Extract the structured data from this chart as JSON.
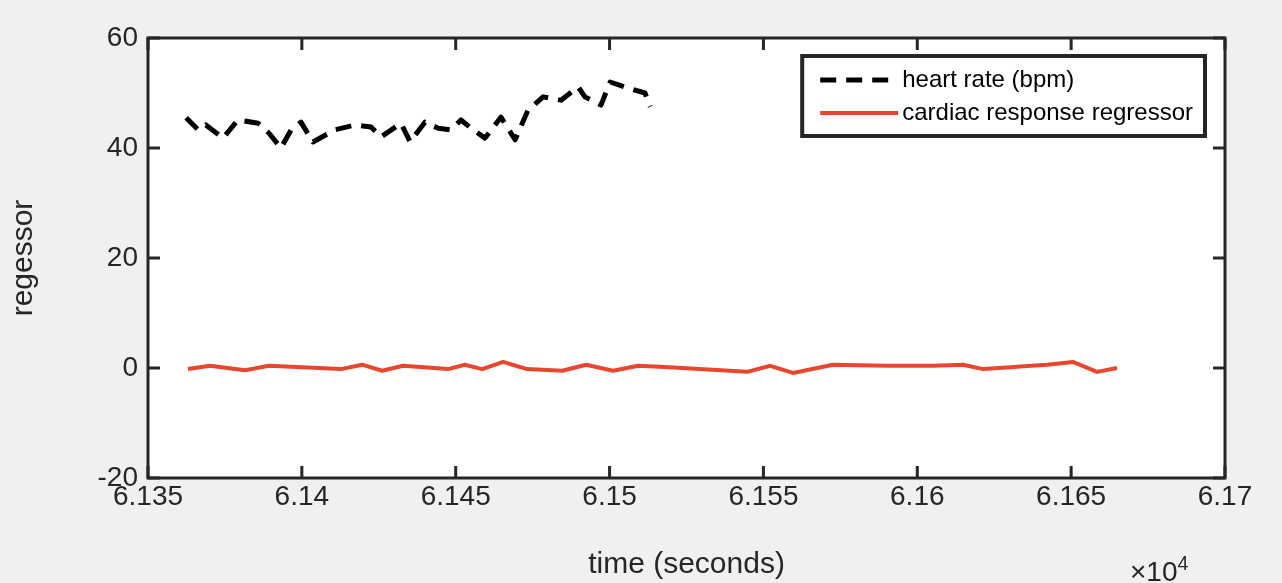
{
  "chart_data": {
    "type": "line",
    "xlabel": "time (seconds)",
    "ylabel": "regessor",
    "xlim": [
      6.135,
      6.17
    ],
    "xticks": [
      6.135,
      6.14,
      6.145,
      6.15,
      6.155,
      6.16,
      6.165,
      6.17
    ],
    "ylim": [
      -20,
      60
    ],
    "yticks": [
      -20,
      0,
      20,
      40,
      60
    ],
    "legend": "top right",
    "annotations": [
      "×10$^{4}$"
    ],
    "series": [
      {
        "name": "heart rate (bpm)",
        "color": "#000000",
        "line_style": "dashed",
        "x": [
          6.13624,
          6.13663,
          6.13688,
          6.13744,
          6.13792,
          6.13858,
          6.1389,
          6.13932,
          6.13965,
          6.13997,
          6.14036,
          6.14108,
          6.14173,
          6.14225,
          6.14257,
          6.14322,
          6.14352,
          6.144,
          6.14443,
          6.14485,
          6.14517,
          6.1455,
          6.14595,
          6.14647,
          6.14693,
          6.14735,
          6.14784,
          6.14842,
          6.14898,
          6.1492,
          6.14972,
          6.15002,
          6.1506,
          6.15115,
          6.15132
        ],
        "values": [
          45.5,
          43.3,
          44.2,
          41.8,
          45.1,
          44.5,
          42.9,
          40.0,
          43.3,
          44.7,
          41.1,
          43.3,
          44.2,
          43.8,
          42.0,
          44.5,
          41.1,
          44.7,
          43.6,
          43.3,
          45.1,
          43.6,
          41.8,
          45.6,
          41.5,
          46.9,
          49.3,
          48.7,
          51.1,
          49.3,
          47.8,
          52.0,
          50.9,
          50.0,
          47.5
        ]
      },
      {
        "name": "cardiac response regressor",
        "color": "#e8472e",
        "line_style": "solid",
        "x": [
          6.1363,
          6.13702,
          6.13815,
          6.13893,
          6.14127,
          6.14196,
          6.14261,
          6.14329,
          6.14475,
          6.1453,
          6.14586,
          6.14654,
          6.14732,
          6.14846,
          6.14924,
          6.15011,
          6.15093,
          6.1518,
          6.15447,
          6.15522,
          6.15596,
          6.15726,
          6.15902,
          6.16051,
          6.16149,
          6.16214,
          6.16422,
          6.16506,
          6.16584,
          6.16649
        ],
        "values": [
          -0.2,
          0.4,
          -0.4,
          0.4,
          -0.2,
          0.6,
          -0.5,
          0.4,
          -0.2,
          0.6,
          -0.2,
          1.1,
          -0.2,
          -0.5,
          0.6,
          -0.5,
          0.4,
          0.2,
          -0.7,
          0.4,
          -0.9,
          0.6,
          0.4,
          0.4,
          0.6,
          -0.2,
          0.6,
          1.1,
          -0.7,
          0.0
        ]
      }
    ]
  }
}
